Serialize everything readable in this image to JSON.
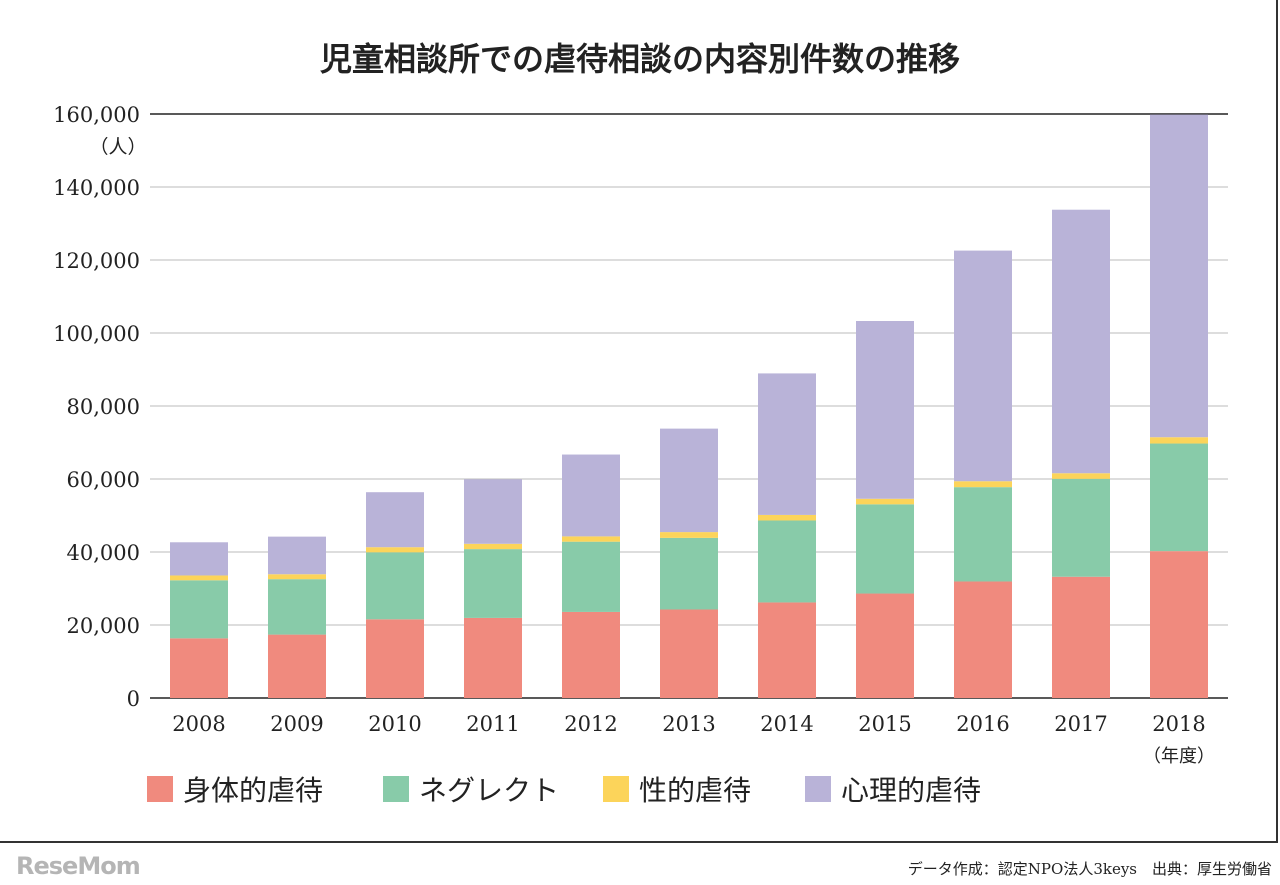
{
  "chart_data": {
    "type": "bar",
    "stacked": true,
    "title": "児童相談所での虐待相談の内容別件数の推移",
    "ylabel": "（人）",
    "xlabel": "（年度）",
    "ylim": [
      0,
      160000
    ],
    "yticks": [
      0,
      20000,
      40000,
      60000,
      80000,
      100000,
      120000,
      140000,
      160000
    ],
    "ytick_labels": [
      "0",
      "20,000",
      "40,000",
      "60,000",
      "80,000",
      "100,000",
      "120,000",
      "140,000",
      "160,000"
    ],
    "grid": true,
    "legend_position": "bottom",
    "categories": [
      "2008",
      "2009",
      "2010",
      "2011",
      "2012",
      "2013",
      "2014",
      "2015",
      "2016",
      "2017",
      "2018"
    ],
    "series": [
      {
        "name": "身体的虐待",
        "color": "#f08a7e",
        "values": [
          16343,
          17371,
          21559,
          21942,
          23579,
          24245,
          26181,
          28621,
          31925,
          33223,
          40238
        ]
      },
      {
        "name": "ネグレクト",
        "color": "#88cba9",
        "values": [
          15905,
          15185,
          18352,
          18847,
          19250,
          19627,
          22455,
          24444,
          25842,
          26821,
          29479
        ]
      },
      {
        "name": "性的虐待",
        "color": "#fcd45a",
        "values": [
          1324,
          1350,
          1405,
          1460,
          1449,
          1582,
          1520,
          1521,
          1622,
          1537,
          1730
        ]
      },
      {
        "name": "心理的虐待",
        "color": "#b9b3d8",
        "values": [
          9092,
          10305,
          15068,
          17670,
          22423,
          28348,
          38775,
          48700,
          63186,
          72197,
          88391
        ]
      }
    ]
  },
  "footer": "データ作成：認定NPO法人3keys　出典：厚生労働省",
  "watermark": "ReseMom"
}
